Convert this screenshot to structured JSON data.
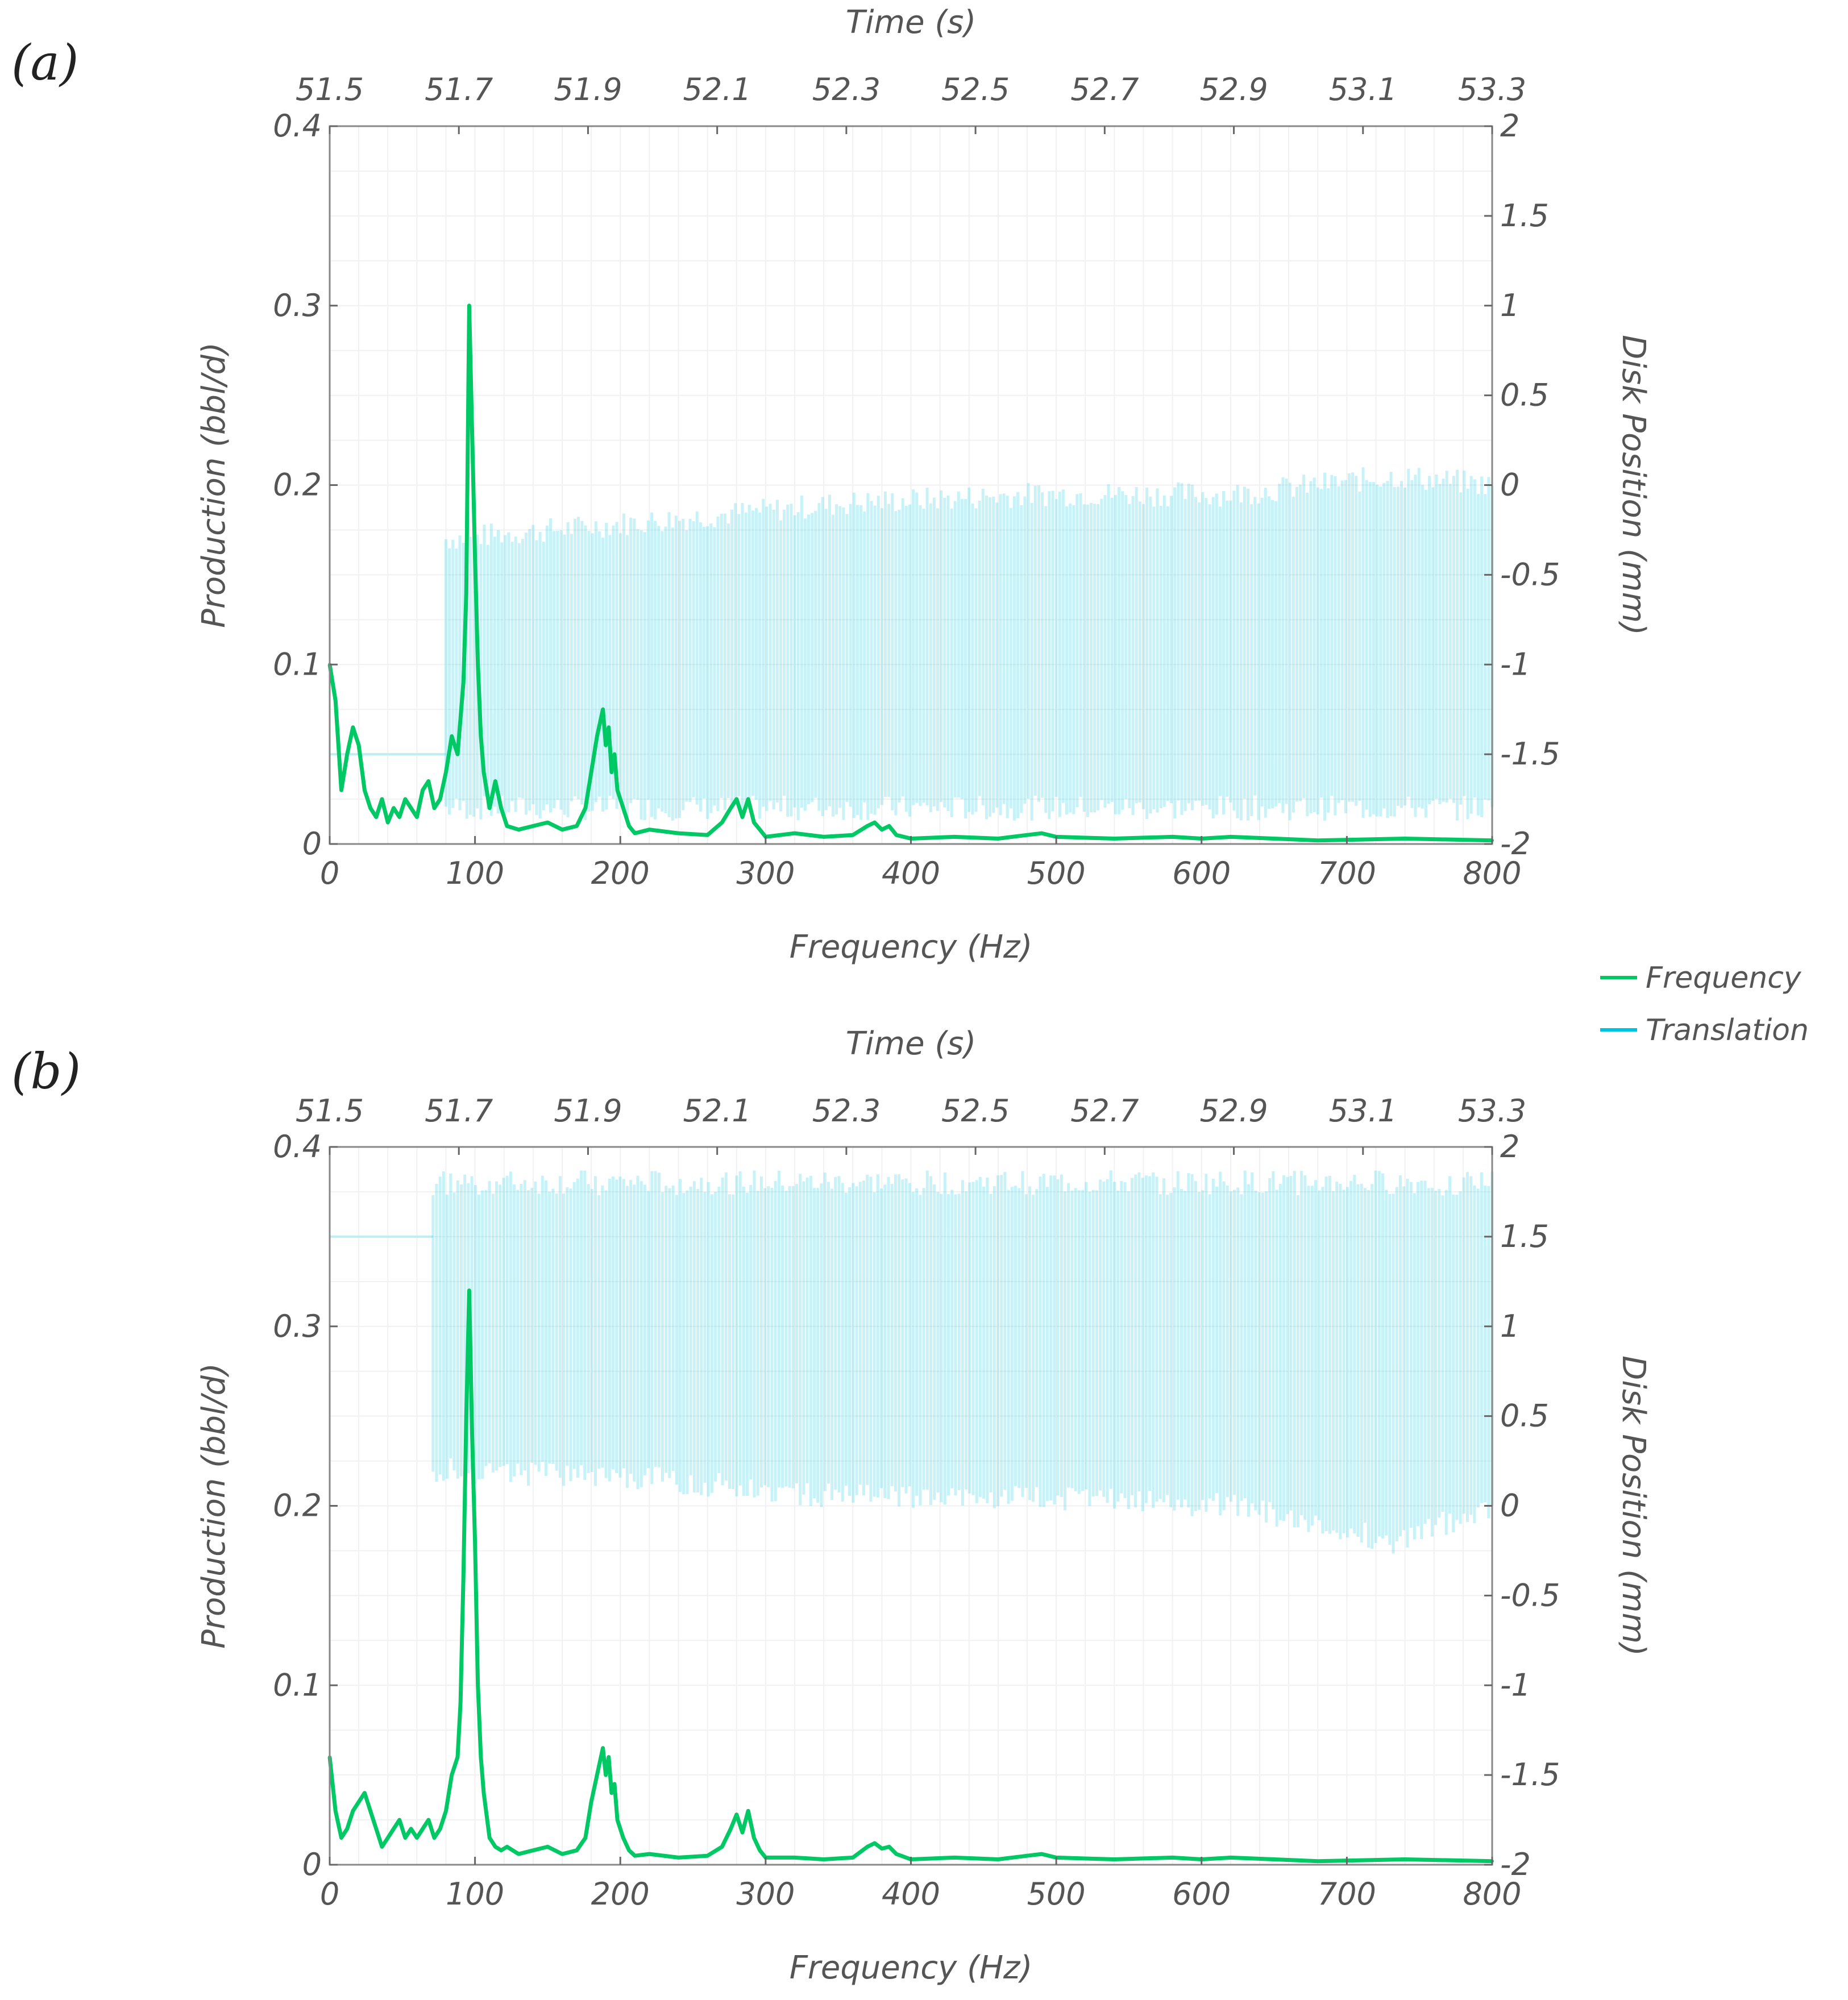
{
  "legend": {
    "position": "right, between panels",
    "items": [
      {
        "name": "Frequency",
        "color": "#00c864"
      },
      {
        "name": "Translation",
        "color": "#00c4dc"
      }
    ]
  },
  "chart_data": [
    {
      "panel_label": "(a)",
      "type": "line",
      "top_axis": {
        "label": "Time (s)",
        "ticks": [
          "51.5",
          "51.7",
          "51.9",
          "52.1",
          "52.3",
          "52.5",
          "52.7",
          "52.9",
          "53.1",
          "53.3"
        ]
      },
      "xlabel": "Frequency (Hz)",
      "xlim": [
        0,
        800
      ],
      "xticks": [
        "0",
        "100",
        "200",
        "300",
        "400",
        "500",
        "600",
        "700",
        "800"
      ],
      "ylabel": "Production (bbl/d)",
      "ylim": [
        0,
        0.4
      ],
      "yticks": [
        "0",
        "0.1",
        "0.2",
        "0.3",
        "0.4"
      ],
      "y2label": "Disk Position (mm)",
      "y2lim": [
        -2,
        2
      ],
      "y2ticks": [
        "-2",
        "-1.5",
        "-1",
        "-0.5",
        "0",
        "0.5",
        "1",
        "1.5",
        "2"
      ],
      "series": [
        {
          "name": "Frequency",
          "axis": "left",
          "x": [
            0,
            4,
            8,
            12,
            16,
            20,
            24,
            28,
            32,
            36,
            40,
            44,
            48,
            52,
            56,
            60,
            64,
            68,
            72,
            76,
            80,
            84,
            88,
            90,
            92,
            94,
            96,
            98,
            100,
            102,
            104,
            106,
            110,
            114,
            118,
            122,
            130,
            140,
            150,
            160,
            170,
            176,
            180,
            184,
            188,
            190,
            192,
            194,
            196,
            198,
            202,
            206,
            210,
            220,
            240,
            260,
            270,
            276,
            280,
            284,
            288,
            292,
            296,
            300,
            320,
            340,
            360,
            370,
            375,
            380,
            385,
            390,
            400,
            430,
            460,
            480,
            490,
            500,
            540,
            580,
            600,
            620,
            680,
            740,
            800
          ],
          "values": [
            0.1,
            0.08,
            0.03,
            0.05,
            0.065,
            0.055,
            0.03,
            0.02,
            0.015,
            0.025,
            0.012,
            0.02,
            0.015,
            0.025,
            0.02,
            0.015,
            0.03,
            0.035,
            0.02,
            0.025,
            0.04,
            0.06,
            0.05,
            0.07,
            0.09,
            0.14,
            0.3,
            0.23,
            0.16,
            0.1,
            0.06,
            0.04,
            0.02,
            0.035,
            0.02,
            0.01,
            0.008,
            0.01,
            0.012,
            0.008,
            0.01,
            0.02,
            0.04,
            0.06,
            0.075,
            0.055,
            0.065,
            0.04,
            0.05,
            0.03,
            0.02,
            0.01,
            0.006,
            0.008,
            0.006,
            0.005,
            0.012,
            0.02,
            0.025,
            0.015,
            0.025,
            0.012,
            0.008,
            0.004,
            0.006,
            0.004,
            0.005,
            0.01,
            0.012,
            0.008,
            0.01,
            0.005,
            0.003,
            0.004,
            0.003,
            0.005,
            0.006,
            0.004,
            0.003,
            0.004,
            0.003,
            0.004,
            0.002,
            0.003,
            0.002
          ]
        },
        {
          "name": "Translation",
          "axis": "right",
          "hold_until_time": 51.68,
          "initial_value": -1.5,
          "oscillation_upper": [
            {
              "time": 51.68,
              "value": -0.3
            },
            {
              "time": 52.0,
              "value": -0.2
            },
            {
              "time": 52.3,
              "value": -0.1
            },
            {
              "time": 52.6,
              "value": -0.05
            },
            {
              "time": 52.9,
              "value": -0.05
            },
            {
              "time": 53.15,
              "value": 0.05
            },
            {
              "time": 53.3,
              "value": 0.0
            }
          ],
          "oscillation_lower": -1.8
        }
      ]
    },
    {
      "panel_label": "(b)",
      "type": "line",
      "top_axis": {
        "label": "Time (s)",
        "ticks": [
          "51.5",
          "51.7",
          "51.9",
          "52.1",
          "52.3",
          "52.5",
          "52.7",
          "52.9",
          "53.1",
          "53.3"
        ]
      },
      "xlabel": "Frequency (Hz)",
      "xlim": [
        0,
        800
      ],
      "xticks": [
        "0",
        "100",
        "200",
        "300",
        "400",
        "500",
        "600",
        "700",
        "800"
      ],
      "ylabel": "Production (bbl/d)",
      "ylim": [
        0,
        0.4
      ],
      "yticks": [
        "0",
        "0.1",
        "0.2",
        "0.3",
        "0.4"
      ],
      "y2label": "Disk Position (mm)",
      "y2lim": [
        -2,
        2
      ],
      "y2ticks": [
        "-2",
        "-1.5",
        "-1",
        "-0.5",
        "0",
        "0.5",
        "1",
        "1.5",
        "2"
      ],
      "series": [
        {
          "name": "Frequency",
          "axis": "left",
          "x": [
            0,
            4,
            8,
            12,
            16,
            20,
            24,
            28,
            32,
            36,
            40,
            44,
            48,
            52,
            56,
            60,
            64,
            68,
            72,
            76,
            80,
            84,
            88,
            90,
            92,
            94,
            96,
            98,
            100,
            102,
            104,
            106,
            110,
            114,
            118,
            122,
            130,
            140,
            150,
            160,
            170,
            176,
            180,
            184,
            188,
            190,
            192,
            194,
            196,
            198,
            202,
            206,
            210,
            220,
            240,
            260,
            270,
            276,
            280,
            284,
            288,
            292,
            296,
            300,
            320,
            340,
            360,
            370,
            375,
            380,
            385,
            390,
            400,
            430,
            460,
            480,
            490,
            500,
            540,
            580,
            600,
            620,
            680,
            740,
            800
          ],
          "values": [
            0.06,
            0.03,
            0.015,
            0.02,
            0.03,
            0.035,
            0.04,
            0.03,
            0.02,
            0.01,
            0.015,
            0.02,
            0.025,
            0.015,
            0.02,
            0.015,
            0.02,
            0.025,
            0.015,
            0.02,
            0.03,
            0.05,
            0.06,
            0.09,
            0.16,
            0.25,
            0.32,
            0.24,
            0.18,
            0.1,
            0.06,
            0.04,
            0.015,
            0.01,
            0.008,
            0.01,
            0.006,
            0.008,
            0.01,
            0.006,
            0.008,
            0.015,
            0.035,
            0.05,
            0.065,
            0.05,
            0.06,
            0.04,
            0.045,
            0.025,
            0.015,
            0.008,
            0.005,
            0.006,
            0.004,
            0.005,
            0.01,
            0.02,
            0.028,
            0.018,
            0.03,
            0.015,
            0.008,
            0.004,
            0.004,
            0.003,
            0.004,
            0.01,
            0.012,
            0.009,
            0.01,
            0.006,
            0.003,
            0.004,
            0.003,
            0.005,
            0.006,
            0.004,
            0.003,
            0.004,
            0.003,
            0.004,
            0.002,
            0.003,
            0.002
          ]
        },
        {
          "name": "Translation",
          "axis": "right",
          "hold_until_time": 51.66,
          "initial_value": 1.5,
          "oscillation_upper": 1.8,
          "oscillation_lower": [
            {
              "time": 51.66,
              "value": 0.2
            },
            {
              "time": 52.0,
              "value": 0.15
            },
            {
              "time": 52.3,
              "value": 0.05
            },
            {
              "time": 52.6,
              "value": 0.05
            },
            {
              "time": 52.9,
              "value": 0.0
            },
            {
              "time": 53.15,
              "value": -0.2
            },
            {
              "time": 53.3,
              "value": 0.0
            }
          ]
        }
      ]
    }
  ]
}
